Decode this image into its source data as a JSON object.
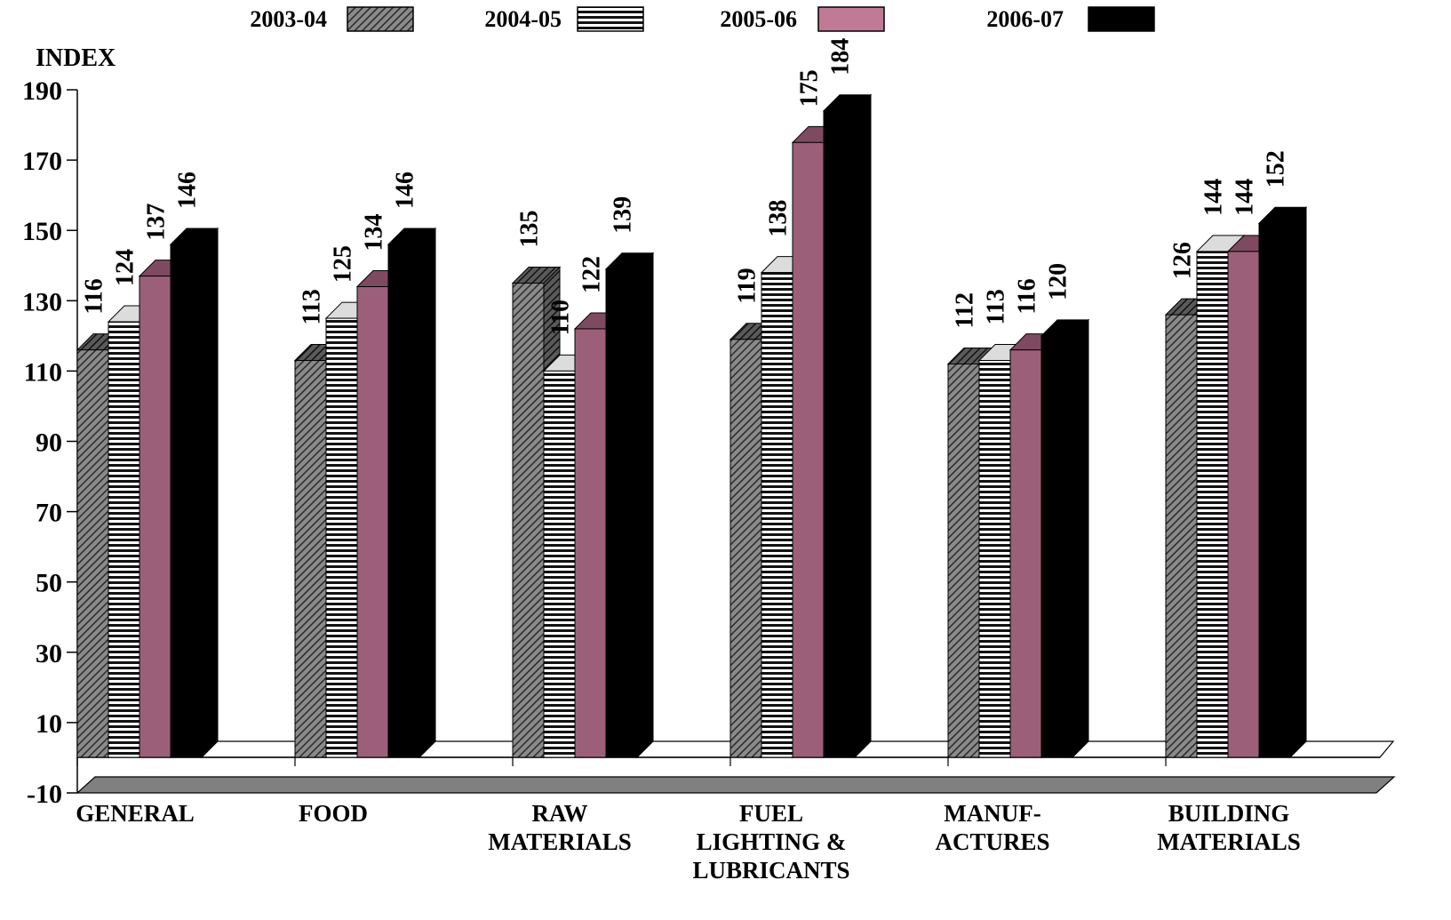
{
  "chart_data": {
    "type": "bar",
    "title": "",
    "ylabel": "INDEX",
    "xlabel": "",
    "ylim": [
      -10,
      190
    ],
    "yticks": [
      190,
      170,
      150,
      130,
      110,
      90,
      70,
      50,
      30,
      10,
      -10
    ],
    "categories": [
      [
        "GENERAL"
      ],
      [
        "FOOD"
      ],
      [
        "RAW",
        "MATERIALS"
      ],
      [
        "FUEL",
        "LIGHTING &",
        "LUBRICANTS"
      ],
      [
        "MANUF-",
        "ACTURES"
      ],
      [
        "BUILDING",
        "MATERIALS"
      ]
    ],
    "series": [
      {
        "name": "2003-04",
        "pattern": "diagonal-hatch",
        "values": [
          116,
          113,
          135,
          119,
          112,
          126
        ]
      },
      {
        "name": "2004-05",
        "pattern": "horizontal-stripes",
        "values": [
          124,
          125,
          110,
          138,
          113,
          144
        ]
      },
      {
        "name": "2005-06",
        "pattern": "solid",
        "color": "#9c5f79",
        "values": [
          137,
          134,
          122,
          175,
          116,
          144
        ]
      },
      {
        "name": "2006-07",
        "pattern": "solid",
        "color": "#000000",
        "values": [
          146,
          146,
          139,
          184,
          120,
          152
        ]
      }
    ],
    "legend_position": "top",
    "grid": false,
    "style": "3d-bar"
  }
}
